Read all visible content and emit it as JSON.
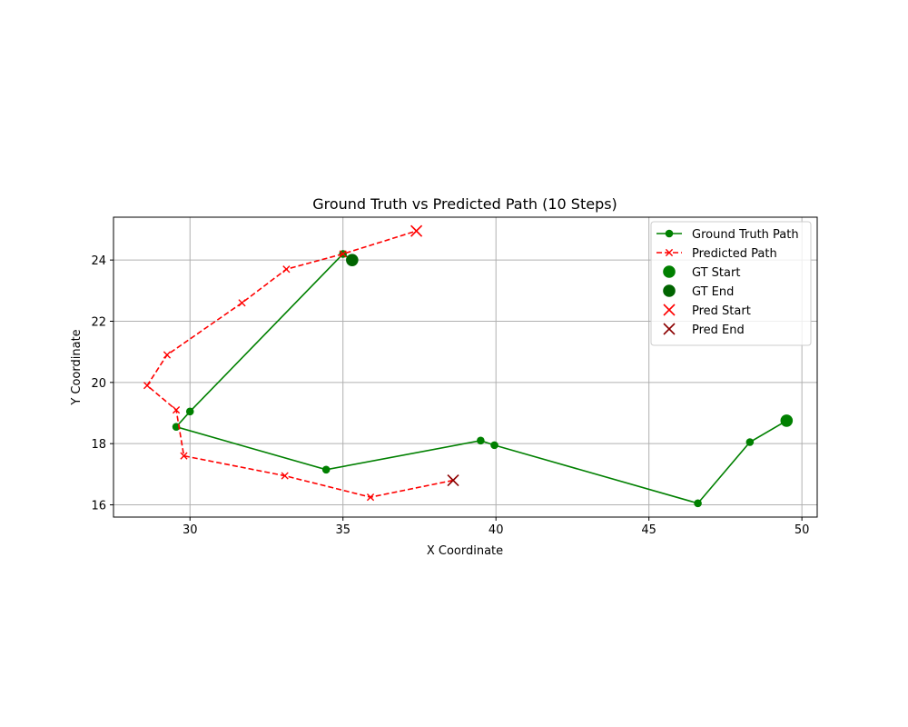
{
  "chart_data": {
    "type": "line",
    "title": "Ground Truth vs Predicted Path (10 Steps)",
    "xlabel": "X Coordinate",
    "ylabel": "Y Coordinate",
    "xlim": [
      27.5,
      50.5
    ],
    "ylim": [
      15.6,
      25.4
    ],
    "xticks": [
      30,
      35,
      40,
      45,
      50
    ],
    "yticks": [
      16,
      18,
      20,
      22,
      24
    ],
    "grid": true,
    "legend_position": "top-right",
    "series": [
      {
        "name": "Ground Truth Path",
        "color": "#008000",
        "line_style": "solid",
        "marker": "circle",
        "x": [
          49.5,
          48.3,
          46.6,
          39.95,
          39.5,
          34.45,
          29.55,
          30.0,
          35.0,
          35.3
        ],
        "y": [
          18.75,
          18.05,
          16.05,
          17.95,
          18.1,
          17.15,
          18.55,
          19.05,
          24.2,
          24.0
        ]
      },
      {
        "name": "Predicted Path",
        "color": "#ff0000",
        "line_style": "dashed",
        "marker": "x",
        "x": [
          38.6,
          35.9,
          33.1,
          29.8,
          29.55,
          28.6,
          29.25,
          31.7,
          33.15,
          35.0,
          37.4
        ],
        "y": [
          16.8,
          16.25,
          16.95,
          17.6,
          19.1,
          19.9,
          20.9,
          22.6,
          23.7,
          24.2,
          24.95
        ]
      }
    ],
    "markers": [
      {
        "name": "GT Start",
        "x": 49.5,
        "y": 18.75,
        "shape": "circle",
        "color": "#008000"
      },
      {
        "name": "GT End",
        "x": 35.3,
        "y": 24.0,
        "shape": "circle",
        "color": "#006400"
      },
      {
        "name": "Pred Start",
        "x": 37.4,
        "y": 24.95,
        "shape": "x",
        "color": "#ff0000"
      },
      {
        "name": "Pred End",
        "x": 38.6,
        "y": 16.8,
        "shape": "x",
        "color": "#8b0000"
      }
    ],
    "legend": [
      {
        "label": "Ground Truth Path",
        "kind": "line",
        "color": "#008000",
        "line_style": "solid",
        "marker": "circle"
      },
      {
        "label": "Predicted Path",
        "kind": "line",
        "color": "#ff0000",
        "line_style": "dashed",
        "marker": "x"
      },
      {
        "label": "GT Start",
        "kind": "marker",
        "color": "#008000",
        "marker": "circle"
      },
      {
        "label": "GT End",
        "kind": "marker",
        "color": "#006400",
        "marker": "circle"
      },
      {
        "label": "Pred Start",
        "kind": "marker",
        "color": "#ff0000",
        "marker": "x"
      },
      {
        "label": "Pred End",
        "kind": "marker",
        "color": "#8b0000",
        "marker": "x"
      }
    ]
  }
}
